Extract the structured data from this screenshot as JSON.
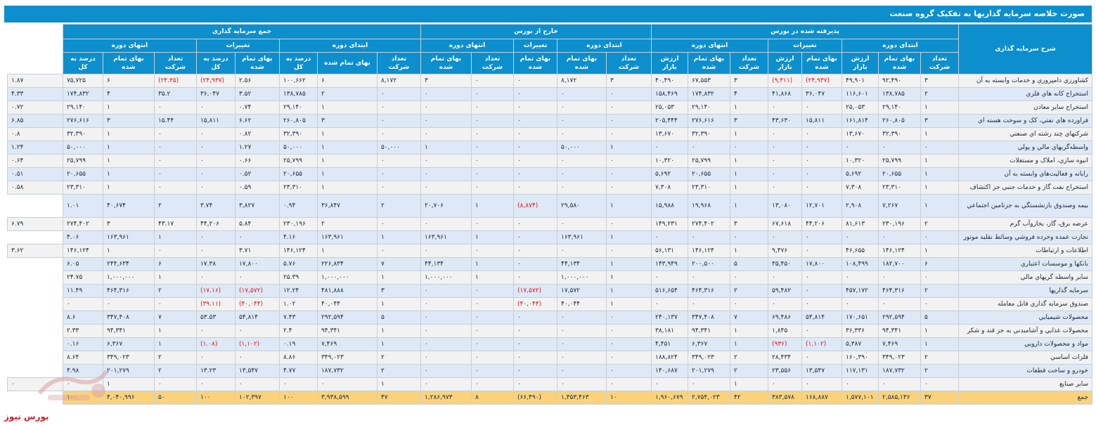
{
  "title": "صورت خلاصه سرمایه گذاریها به تفکیک گروه صنعت",
  "header": {
    "row_label": "شرح سرمایه گذاری",
    "groups": {
      "listed": "پذیرفته شده در بورس",
      "unlisted": "خارج از بورس",
      "total": "جمع سرمایه گذاری"
    },
    "sub": {
      "start": "ابتدای دوره",
      "changes": "تغییرات",
      "end": "انتهای دوره"
    },
    "cols": {
      "count": "تعداد شرکت",
      "cost": "بهای تمام شده",
      "market": "ارزش بازار",
      "market_split": "ارزش بازار",
      "pct": "درصد به کل"
    }
  },
  "rows": [
    {
      "name": "کشاورزي دامپروري و خدمات وابسته به آن",
      "v": [
        "۳",
        "۹۲,۴۹۰",
        "۴۹,۹۰۱",
        "(۲۴,۹۳۷)",
        "(۹,۴۱۱)",
        "۳",
        "۶۷,۵۵۳",
        "۴۰,۴۹۰",
        "۳",
        "۸,۱۷۲",
        "۰",
        "۰",
        "۳",
        "۸,۱۷۲",
        "۶",
        "۱۰۰,۶۶۲",
        "۲.۵۶",
        "(۲۴,۹۳۷)",
        "(۲۴.۳۵)",
        "۶",
        "۷۵,۷۲۵",
        "۱.۸۷"
      ]
    },
    {
      "name": "استخراج کانه هاي فلزي",
      "v": [
        "۲",
        "۱۳۸,۷۸۵",
        "۱۱۶,۶۰۱",
        "۳۶,۰۴۷",
        "۴۱,۸۶۸",
        "۴",
        "۱۷۴,۸۳۲",
        "۱۵۸,۴۶۹",
        "۰",
        "۰",
        "۰",
        "۰",
        "۰",
        "۰",
        "۲",
        "۱۳۸,۷۸۵",
        "۳.۵۲",
        "۳۶,۰۴۷",
        "۳۵.۲",
        "۴",
        "۱۷۴,۸۳۲",
        "۴.۳۳"
      ]
    },
    {
      "name": "استخراج ساير معادن",
      "v": [
        "۱",
        "۲۹,۱۴۰",
        "۲۵,۰۵۳",
        "۰",
        "۰",
        "۱",
        "۲۹,۱۴۰",
        "۲۵,۰۵۳",
        "۰",
        "۰",
        "۰",
        "۰",
        "۰",
        "۰",
        "۱",
        "۲۹,۱۴۰",
        "۰.۷۴",
        "۰",
        "۰",
        "۱",
        "۲۹,۱۴۰",
        "۰.۷۲"
      ]
    },
    {
      "name": "فراورده هاي نفتي، کک و سوخت هسته اي",
      "v": [
        "۳",
        "۲۶۰,۸۰۵",
        "۱۶۱,۸۱۴",
        "۱۵,۸۱۱",
        "۴۳,۶۳۰",
        "۳",
        "۲۷۶,۶۱۶",
        "۲۰۵,۴۴۴",
        "۰",
        "۰",
        "۰",
        "۰",
        "۰",
        "۰",
        "۳",
        "۲۶۰,۸۰۵",
        "۶.۶۲",
        "۱۵,۸۱۱",
        "۱۵.۴۴",
        "۳",
        "۲۷۶,۶۱۶",
        "۶.۸۵"
      ]
    },
    {
      "name": "شرکتهاي چند رشته اي صنعتي",
      "v": [
        "۱",
        "۳۲,۳۹۰",
        "۱۳,۶۷۰",
        "۰",
        "۰",
        "۱",
        "۳۲,۳۹۰",
        "۱۳,۶۷۰",
        "۰",
        "۰",
        "۰",
        "۰",
        "۰",
        "۰",
        "۱",
        "۳۲,۳۹۰",
        "۰.۸۲",
        "۰",
        "۰",
        "۱",
        "۳۲,۳۹۰",
        "۰.۸"
      ]
    },
    {
      "name": "واسطه‌گريهاي مالي و پولي",
      "v": [
        "۰",
        "۰",
        "۰",
        "۰",
        "۰",
        "۰",
        "۰",
        "۰",
        "۱",
        "۵۰,۰۰۰",
        "۰",
        "۰",
        "۱",
        "۵۰,۰۰۰",
        "۱",
        "۵۰,۰۰۰",
        "۱.۲۷",
        "۰",
        "۰",
        "۱",
        "۵۰,۰۰۰",
        "۱.۲۴"
      ]
    },
    {
      "name": "انبوه سازي، املاک و مستغلات",
      "v": [
        "۱",
        "۲۵,۷۹۹",
        "۱۰,۳۲۰",
        "۰",
        "۰",
        "۱",
        "۲۵,۷۹۹",
        "۱۰,۳۲۰",
        "۰",
        "۰",
        "۰",
        "۰",
        "۰",
        "۰",
        "۱",
        "۲۵,۷۹۹",
        "۰.۶۶",
        "۰",
        "۰",
        "۱",
        "۲۵,۷۹۹",
        "۰.۶۴"
      ]
    },
    {
      "name": "رايانه و فعاليت‌هاي وابسته به آن",
      "v": [
        "۱",
        "۲۰,۶۵۵",
        "۵,۶۹۲",
        "۰",
        "۰",
        "۱",
        "۲۰,۶۵۵",
        "۵,۶۹۲",
        "۰",
        "۰",
        "۰",
        "۰",
        "۰",
        "۰",
        "۱",
        "۲۰,۶۵۵",
        "۰.۵۲",
        "۰",
        "۰",
        "۱",
        "۲۰,۶۵۵",
        "۰.۵۱"
      ]
    },
    {
      "name": "استخراج نفت گاز و خدمات جنبي جز اکتشاف",
      "v": [
        "۱",
        "۲۳,۳۱۰",
        "۷,۳۰۸",
        "۰",
        "۰",
        "۱",
        "۲۳,۳۱۰",
        "۷,۳۰۸",
        "۰",
        "۰",
        "۰",
        "۰",
        "۰",
        "۰",
        "۱",
        "۲۳,۳۱۰",
        "۰.۵۹",
        "۰",
        "۰",
        "۱",
        "۲۳,۳۱۰",
        "۰.۵۸"
      ]
    },
    {
      "name": "بيمه وصندوق بازنشستگي به جزتامين اجتماعي",
      "tall": true,
      "v": [
        "۱",
        "۷,۲۶۷",
        "۲,۹۰۸",
        "۱۲,۷۰۱",
        "۱۳,۰۸۰",
        "۱",
        "۱۹,۹۶۸",
        "۱۵,۹۸۸",
        "۱",
        "۲۹,۵۸۰",
        "(۸,۸۷۴)",
        "۱",
        "۲۰,۷۰۶",
        "۲",
        "۳۶,۸۴۷",
        "۰.۹۴",
        "۳,۸۲۷",
        "۳.۷۴",
        "۲",
        "۴۰,۶۷۴",
        "۱.۰۱"
      ]
    },
    {
      "name": "عرضه برق، گاز، بخاروآب گرم",
      "v": [
        "۲",
        "۲۳۰,۱۹۶",
        "۸۱,۶۱۳",
        "۴۴,۲۰۶",
        "۶۷,۶۱۸",
        "۳",
        "۲۷۴,۴۰۲",
        "۱۴۹,۲۳۱",
        "۰",
        "۰",
        "۰",
        "۰",
        "۰",
        "۰",
        "۲",
        "۲۳۰,۱۹۶",
        "۵.۸۴",
        "۴۴,۲۰۶",
        "۴۳.۱۷",
        "۳",
        "۲۷۴,۴۰۲",
        "۶.۷۹"
      ]
    },
    {
      "name": "تجارت عمده وخرده فروشي وسائط نقليه موتور",
      "v": [
        "۰",
        "۰",
        "۰",
        "۰",
        "۰",
        "۰",
        "۰",
        "۰",
        "۱",
        "۱۶۳,۹۶۱",
        "۰",
        "۱",
        "۱۶۳,۹۶۱",
        "۱",
        "۱۶۳,۹۶۱",
        "۴.۱۶",
        "۰",
        "۰",
        "۱",
        "۱۶۳,۹۶۱",
        "۴.۰۶"
      ]
    },
    {
      "name": "اطلاعات و ارتباطات",
      "v": [
        "۱",
        "۱۴۶,۱۲۴",
        "۴۶,۶۵۵",
        "۰",
        "۹,۴۷۶",
        "۱",
        "۱۴۶,۱۲۴",
        "۵۶,۱۳۱",
        "۰",
        "۰",
        "۰",
        "۰",
        "۰",
        "۰",
        "۱",
        "۱۴۶,۱۲۴",
        "۳.۷۱",
        "۰",
        "۰",
        "۱",
        "۱۴۶,۱۲۴",
        "۳.۶۲"
      ]
    },
    {
      "name": "بانکها و موسسات اعتباري",
      "v": [
        "۶",
        "۱۸۲,۷۰۰",
        "۱۰۸,۴۹۹",
        "۱۷,۸۰۰",
        "۳۵,۴۵۰",
        "۵",
        "۲۰۰,۵۰۰",
        "۱۴۳,۹۴۹",
        "۱",
        "۴۴,۱۳۴",
        "۰",
        "۱",
        "۴۴,۱۳۴",
        "۷",
        "۲۲۶,۸۳۴",
        "۵.۷۶",
        "۱۷,۸۰۰",
        "۱۷.۳۸",
        "۶",
        "۲۴۴,۶۳۴",
        "۶.۰۵"
      ]
    },
    {
      "name": "ساير واسطه گريهاي مالي",
      "v": [
        "۰",
        "۰",
        "۰",
        "۰",
        "۰",
        "۰",
        "۰",
        "۰",
        "۱",
        "۱,۰۰۰,۰۰۰",
        "۰",
        "۱",
        "۱,۰۰۰,۰۰۰",
        "۱",
        "۱,۰۰۰,۰۰۰",
        "۲۵.۳۹",
        "۰",
        "۰",
        "۱",
        "۱,۰۰۰,۰۰۰",
        "۲۴.۷۵"
      ]
    },
    {
      "name": "سرمايه گذاريها",
      "v": [
        "۲",
        "۴۶۴,۳۱۶",
        "۴۵۷,۱۷۲",
        "۰",
        "۵۹,۴۸۲",
        "۲",
        "۴۶۴,۳۱۶",
        "۵۱۶,۶۵۴",
        "۱",
        "۱۷,۵۷۲",
        "(۱۷,۵۷۲)",
        "۰",
        "۰",
        "۳",
        "۴۸۱,۸۸۸",
        "۱۲.۲۴",
        "(۱۷,۵۷۲)",
        "(۱۷.۱۶)",
        "۲",
        "۴۶۴,۳۱۶",
        "۱۱.۴۹"
      ]
    },
    {
      "name": "صندوق سرمايه گذاري قابل معامله",
      "v": [
        "۰",
        "۰",
        "۰",
        "۰",
        "۰",
        "۰",
        "۰",
        "۰",
        "۱",
        "۴۰,۰۴۴",
        "(۴۰,۰۴۴)",
        "۰",
        "۰",
        "۱",
        "۴۰,۰۴۴",
        "۱.۰۲",
        "(۴۰,۰۴۴)",
        "(۳۹.۱۱)",
        "۰",
        "۰",
        "۰"
      ]
    },
    {
      "name": "محصولات شيميايي",
      "v": [
        "۵",
        "۲۹۲,۵۹۴",
        "۱۷۰,۶۵۱",
        "۵۴,۸۱۴",
        "۶۹,۴۸۶",
        "۷",
        "۳۴۷,۴۰۸",
        "۲۴۰,۱۳۷",
        "۰",
        "۰",
        "۰",
        "۰",
        "۰",
        "۵",
        "۲۹۲,۵۹۴",
        "۷.۴۳",
        "۵۴,۸۱۴",
        "۵۳.۵۳",
        "۷",
        "۳۴۷,۴۰۸",
        "۸.۶"
      ]
    },
    {
      "name": "محصولات غذايي و آشاميدني به جز قند و شکر",
      "v": [
        "۱",
        "۹۴,۳۴۱",
        "۳۶,۳۳۶",
        "۰",
        "۱,۸۴۵",
        "۱",
        "۹۴,۳۴۱",
        "۳۸,۱۸۱",
        "۰",
        "۰",
        "۰",
        "۰",
        "۰",
        "۱",
        "۹۴,۳۴۱",
        "۲.۴",
        "۰",
        "۰",
        "۱",
        "۹۴,۳۴۱",
        "۲.۳۳"
      ]
    },
    {
      "name": "مواد و محصولات دارويي",
      "v": [
        "۱",
        "۷,۴۶۹",
        "۵,۳۸۷",
        "(۱,۱۰۲)",
        "(۹۳۶)",
        "۱",
        "۶,۳۶۷",
        "۴,۴۵۱",
        "۰",
        "۰",
        "۰",
        "۰",
        "۰",
        "۱",
        "۷,۴۶۹",
        "۰.۱۹",
        "(۱,۱۰۲)",
        "(۱.۰۸)",
        "۱",
        "۶,۳۶۷",
        "۰.۱۶"
      ]
    },
    {
      "name": "فلزات اساسي",
      "v": [
        "۲",
        "۳۴۹,۰۲۳",
        "۱۶۰,۳۹۰",
        "۰",
        "۲۸,۴۳۴",
        "۲",
        "۳۴۹,۰۲۳",
        "۱۸۸,۸۲۴",
        "۰",
        "۰",
        "۰",
        "۰",
        "۰",
        "۲",
        "۳۴۹,۰۲۳",
        "۸.۸۶",
        "۰",
        "۰",
        "۲",
        "۳۴۹,۰۲۳",
        "۸.۶۴"
      ]
    },
    {
      "name": "خودرو و ساخت قطعات",
      "v": [
        "۲",
        "۱۸۷,۷۳۲",
        "۱۱۷,۱۳۱",
        "۱۳,۵۴۷",
        "۲۳,۵۵۶",
        "۲",
        "۲۰۱,۲۷۹",
        "۱۴۰,۶۸۷",
        "۰",
        "۰",
        "۰",
        "۰",
        "۰",
        "۲",
        "۱۸۷,۷۳۲",
        "۴.۷۷",
        "۱۳,۵۴۷",
        "۱۳.۲۳",
        "۲",
        "۲۰۱,۲۷۹",
        "۴.۹۸"
      ]
    },
    {
      "name": "ساير صنايع",
      "v": [
        "۰",
        "۰",
        "۰",
        "۰",
        "۰",
        "۱",
        "۰",
        "۰",
        "۰",
        "۰",
        "۰",
        "۰",
        "۰",
        "۱",
        "۰",
        "۰",
        "۰",
        "۰",
        "۰",
        "۱",
        "۰",
        "۰"
      ]
    }
  ],
  "total": {
    "name": "جمع",
    "v": [
      "۳۷",
      "۲,۵۸۵,۱۳۶",
      "۱,۵۷۷,۱۰۱",
      "۱۶۸,۸۸۷",
      "۳۸۳,۵۷۸",
      "۴۲",
      "۲,۷۵۴,۰۲۳",
      "۱,۹۶۰,۶۷۹",
      "۱۰",
      "۱,۳۵۳,۴۶۳",
      "(۶۶,۴۹۰)",
      "۸",
      "۱,۲۸۶,۹۷۳",
      "۴۷",
      "۳,۹۳۸,۵۹۹",
      "۱۰۰",
      "۱۰۲,۳۹۷",
      "۱۰۰",
      "۵۰",
      "۴,۰۴۰,۹۹۶",
      "۱۰۰"
    ]
  },
  "brand": "بورس نیوز",
  "colors": {
    "header": "#0d8fce",
    "odd_row": "#f2f2f2",
    "even_row": "#dde9f6",
    "total_row": "#fad27c",
    "negative": "#e0141e"
  }
}
